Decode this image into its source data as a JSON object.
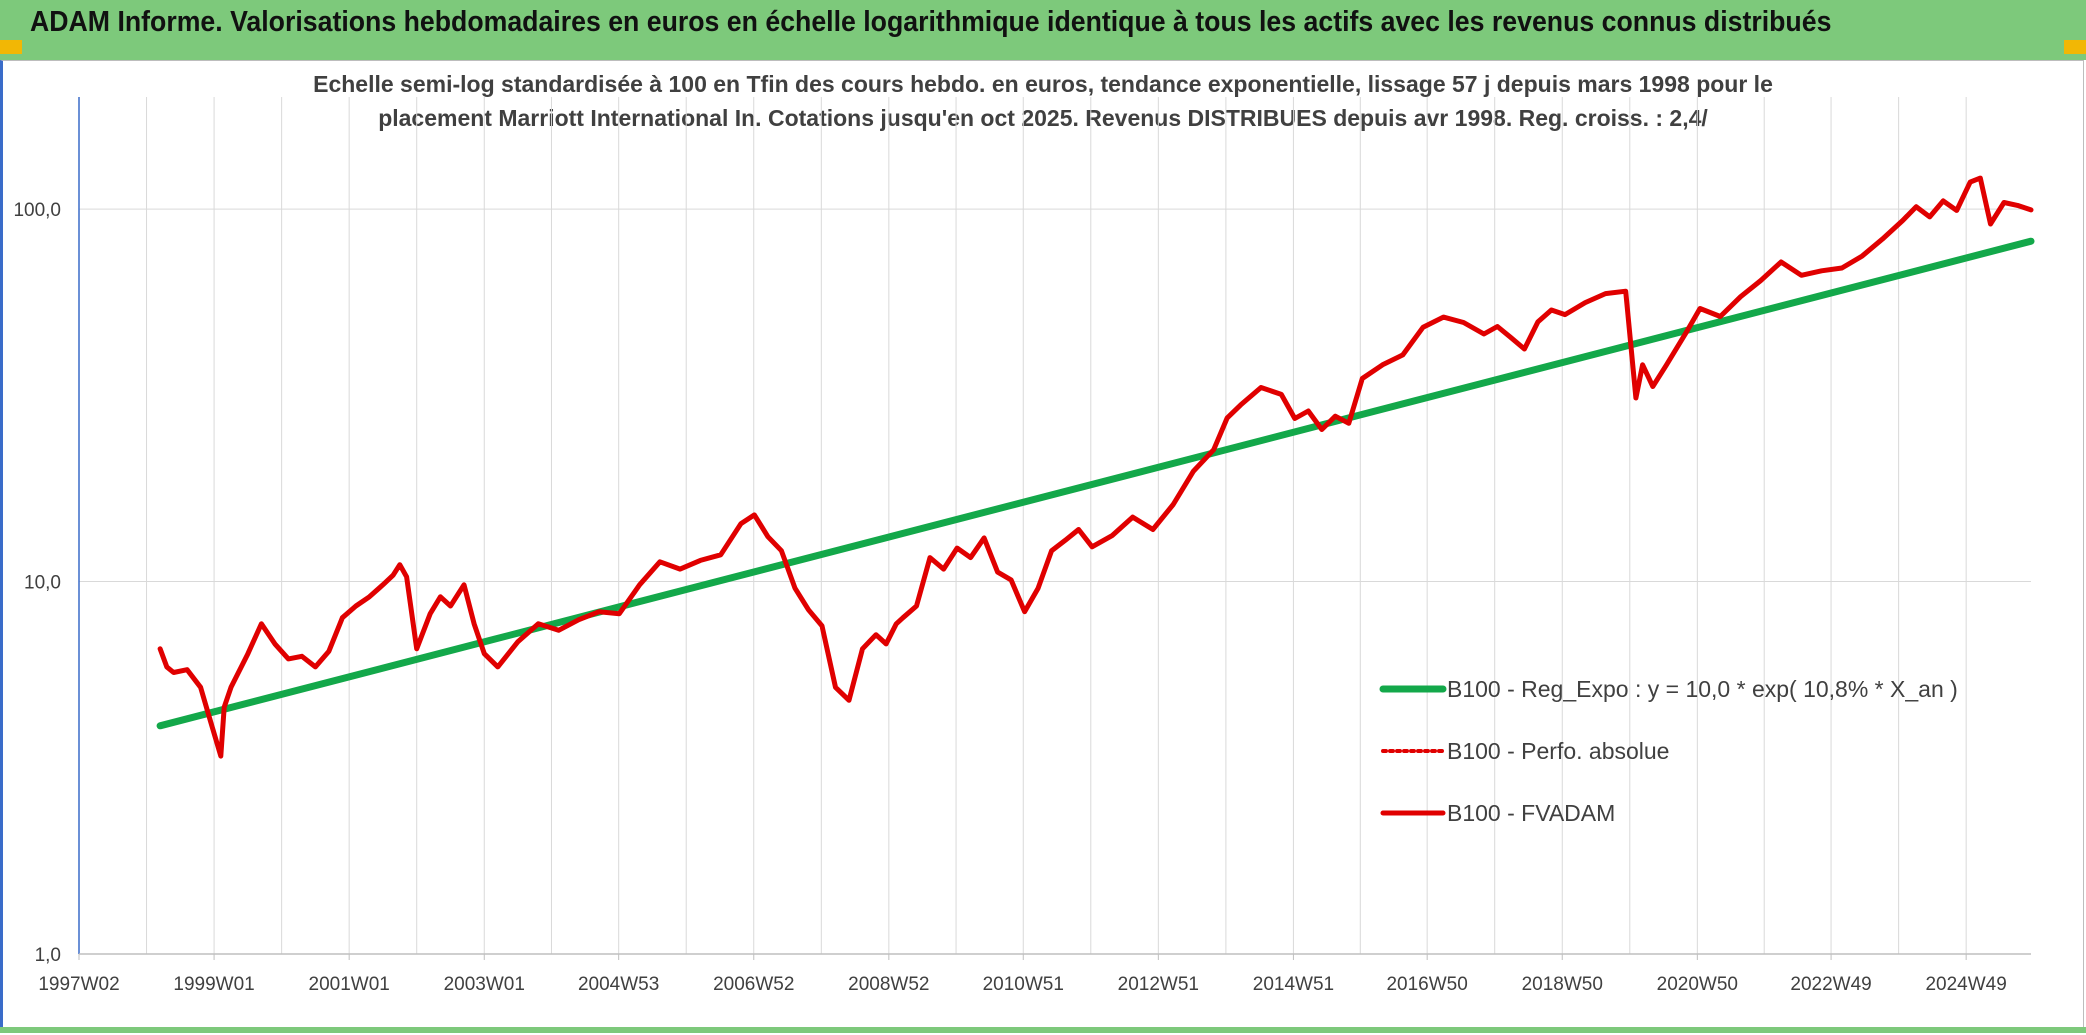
{
  "banner": {
    "title": "ADAM Informe. Valorisations hebdomadaires en euros en échelle logarithmique identique à tous les actifs avec les revenus connus distribués"
  },
  "colors": {
    "banner_bg": "#7dc97b",
    "corner_accent": "#f2b705",
    "regression_line": "#13a84a",
    "fvadam_line": "#e00000",
    "grid": "#d9d9d9",
    "text": "#404040"
  },
  "chart_data": {
    "type": "line",
    "title_line1": "Echelle semi-log standardisée à 100 en Tfin des cours hebdo. en euros, tendance exponentielle, lissage 57 j depuis mars 1998 pour le",
    "title_line2": "placement Marriott International In. Cotations jusqu'en oct 2025. Revenus DISTRIBUES depuis avr 1998. Reg. croiss. : 2,4/",
    "xlabel": "",
    "ylabel": "",
    "y_scale": "log",
    "ylim": [
      1,
      200
    ],
    "xlim": [
      1997.0,
      2025.9
    ],
    "y_ticks": [
      1,
      10,
      100
    ],
    "y_tick_labels": [
      "1,0",
      "10,0",
      "100,0"
    ],
    "x_ticks": [
      1997.0,
      1999.0,
      2001.0,
      2003.0,
      2004.99,
      2006.99,
      2008.99,
      2010.98,
      2012.98,
      2014.98,
      2016.96,
      2018.96,
      2020.96,
      2022.94,
      2024.94
    ],
    "x_tick_labels": [
      "1997W02",
      "1999W01",
      "2001W01",
      "2003W01",
      "2004W53",
      "2006W52",
      "2008W52",
      "2010W51",
      "2012W51",
      "2014W51",
      "2016W50",
      "2018W50",
      "2020W50",
      "2022W49",
      "2024W49"
    ],
    "grid": true,
    "legend_position": "bottom-right",
    "series": [
      {
        "name": "B100 - Reg_Expo : y = 10,0 * exp( 10,8% *  X_an )",
        "style": "solid-thick",
        "x": [
          1998.2,
          2025.9
        ],
        "y": [
          4.1,
          82
        ]
      },
      {
        "name": "B100 - Perfo. absolue",
        "style": "dotted",
        "x": [],
        "y": []
      },
      {
        "name": "B100 - FVADAM",
        "style": "solid",
        "x": [
          1998.2,
          1998.3,
          1998.4,
          1998.6,
          1998.8,
          1998.95,
          1999.1,
          1999.15,
          1999.25,
          1999.5,
          1999.7,
          1999.9,
          2000.1,
          2000.3,
          2000.5,
          2000.7,
          2000.9,
          2001.1,
          2001.3,
          2001.5,
          2001.65,
          2001.75,
          2001.85,
          2002.0,
          2002.2,
          2002.35,
          2002.5,
          2002.7,
          2002.85,
          2003.0,
          2003.2,
          2003.5,
          2003.8,
          2004.1,
          2004.4,
          2004.7,
          2005.0,
          2005.3,
          2005.6,
          2005.9,
          2006.2,
          2006.5,
          2006.8,
          2007.0,
          2007.2,
          2007.4,
          2007.6,
          2007.8,
          2008.0,
          2008.2,
          2008.4,
          2008.6,
          2008.8,
          2008.95,
          2009.1,
          2009.2,
          2009.4,
          2009.6,
          2009.8,
          2010.0,
          2010.2,
          2010.4,
          2010.6,
          2010.8,
          2011.0,
          2011.2,
          2011.4,
          2011.6,
          2011.8,
          2012.0,
          2012.3,
          2012.6,
          2012.9,
          2013.2,
          2013.5,
          2013.8,
          2014.0,
          2014.2,
          2014.5,
          2014.8,
          2015.0,
          2015.2,
          2015.4,
          2015.6,
          2015.8,
          2016.0,
          2016.3,
          2016.6,
          2016.9,
          2017.2,
          2017.5,
          2017.8,
          2018.0,
          2018.2,
          2018.4,
          2018.6,
          2018.8,
          2019.0,
          2019.3,
          2019.6,
          2019.9,
          2020.05,
          2020.15,
          2020.3,
          2020.5,
          2020.8,
          2021.0,
          2021.3,
          2021.6,
          2021.9,
          2022.2,
          2022.5,
          2022.8,
          2023.1,
          2023.4,
          2023.7,
          2024.0,
          2024.2,
          2024.4,
          2024.6,
          2024.8,
          2025.0,
          2025.15,
          2025.3,
          2025.5,
          2025.7,
          2025.9
        ],
        "y": [
          6.6,
          5.9,
          5.7,
          5.8,
          5.2,
          4.2,
          3.4,
          4.6,
          5.2,
          6.4,
          7.7,
          6.8,
          6.2,
          6.3,
          5.9,
          6.5,
          8.0,
          8.6,
          9.1,
          9.8,
          10.4,
          11.1,
          10.3,
          6.6,
          8.2,
          9.1,
          8.6,
          9.8,
          7.7,
          6.4,
          5.9,
          6.9,
          7.7,
          7.4,
          7.9,
          8.3,
          8.2,
          9.8,
          11.3,
          10.8,
          11.4,
          11.8,
          14.3,
          15.1,
          13.2,
          12.1,
          9.6,
          8.4,
          7.6,
          5.2,
          4.8,
          6.6,
          7.2,
          6.8,
          7.7,
          8.0,
          8.6,
          11.6,
          10.8,
          12.3,
          11.6,
          13.1,
          10.6,
          10.1,
          8.3,
          9.6,
          12.1,
          12.9,
          13.8,
          12.4,
          13.3,
          14.9,
          13.8,
          16.1,
          19.8,
          22.6,
          27.5,
          29.8,
          33.2,
          31.8,
          27.4,
          28.7,
          25.6,
          27.8,
          26.6,
          35.1,
          38.2,
          40.6,
          48.2,
          51.3,
          49.6,
          46.2,
          48.4,
          45.2,
          42.1,
          49.8,
          53.6,
          52.1,
          56.1,
          59.3,
          60.2,
          31.1,
          38.2,
          33.4,
          38.1,
          46.8,
          54.1,
          51.5,
          58.2,
          64.3,
          72.1,
          66.4,
          68.3,
          69.5,
          74.8,
          83.1,
          93.2,
          101.5,
          95.3,
          105.2,
          99.2,
          118.2,
          121.1,
          91.2,
          104.2,
          102.3,
          99.5
        ]
      }
    ]
  }
}
